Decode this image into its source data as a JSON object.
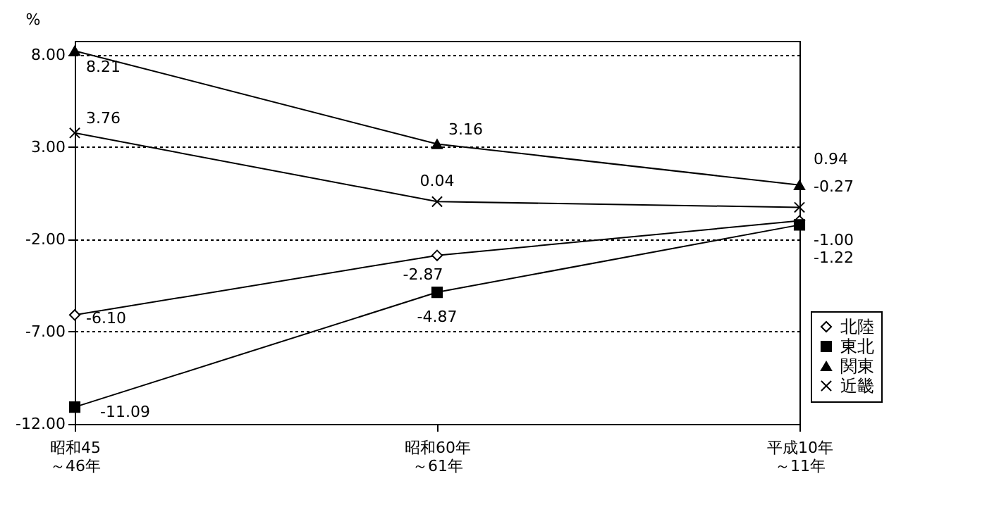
{
  "chart_data": {
    "type": "line",
    "ylabel": "%",
    "categories": [
      "昭和45～46年",
      "昭和60年～61年",
      "平成10年～11年"
    ],
    "series": [
      {
        "name": "北陸",
        "color": "#000000",
        "marker": "diamond",
        "values": [
          -6.1,
          -2.87,
          -1.0
        ],
        "value_labels": [
          "-6.10",
          "-2.87",
          "-1.00"
        ]
      },
      {
        "name": "東北",
        "color": "#000000",
        "marker": "square",
        "values": [
          -11.09,
          -4.87,
          -1.22
        ],
        "value_labels": [
          "-11.09",
          "-4.87",
          "-1.22"
        ]
      },
      {
        "name": "関東",
        "color": "#000000",
        "marker": "triangle",
        "values": [
          8.21,
          3.16,
          0.94
        ],
        "value_labels": [
          "8.21",
          "3.16",
          "0.94"
        ]
      },
      {
        "name": "近畿",
        "color": "#000000",
        "marker": "cross",
        "values": [
          3.76,
          0.04,
          -0.27
        ],
        "value_labels": [
          "3.76",
          "0.04",
          "-0.27"
        ]
      }
    ],
    "ylim": [
      -12,
      8.75
    ],
    "yticks": [
      {
        "value": 8,
        "label": "8.00"
      },
      {
        "value": 3,
        "label": "3.00"
      },
      {
        "value": -2,
        "label": "-2.00"
      },
      {
        "value": -7,
        "label": "-7.00"
      },
      {
        "value": -12,
        "label": "-12.00"
      }
    ],
    "grid": "y",
    "legend": "bottom right",
    "line_style": "solid"
  }
}
